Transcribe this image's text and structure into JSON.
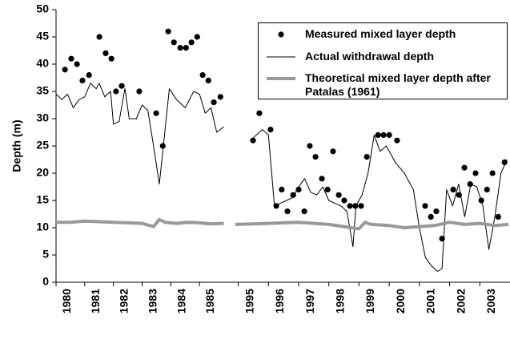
{
  "chart_data": {
    "type": "line",
    "ylabel": "Depth (m)",
    "ylim": [
      0,
      50
    ],
    "yticks": [
      0,
      5,
      10,
      15,
      20,
      25,
      30,
      35,
      40,
      45,
      50
    ],
    "xlim": [
      [
        1980,
        1986
      ],
      [
        1994.8,
        2004
      ]
    ],
    "xticks": [
      1980,
      1981,
      1982,
      1983,
      1984,
      1985,
      1995,
      1996,
      1997,
      1998,
      1999,
      2000,
      2001,
      2002,
      2003
    ],
    "legend": "upper right",
    "series": [
      {
        "name": "Measured mixed layer depth",
        "type": "scatter",
        "color": "#000000",
        "x": [
          1980.31,
          1980.53,
          1980.73,
          1980.92,
          1981.15,
          1981.51,
          1981.73,
          1981.93,
          1982.09,
          1982.29,
          1982.9,
          1983.49,
          1983.72,
          1983.91,
          1984.11,
          1984.33,
          1984.53,
          1984.72,
          1984.92,
          1985.11,
          1985.31,
          1985.5,
          1985.73,
          1995.49,
          1995.7,
          1996.07,
          1996.26,
          1996.44,
          1996.63,
          1996.82,
          1997.0,
          1997.19,
          1997.37,
          1997.56,
          1997.77,
          1997.96,
          1998.14,
          1998.33,
          1998.51,
          1998.7,
          1998.88,
          1999.07,
          1999.26,
          1999.63,
          1999.81,
          2000.0,
          2000.26,
          2001.19,
          2001.38,
          2001.56,
          2001.75,
          2002.12,
          2002.31,
          2002.49,
          2002.68,
          2002.86,
          2003.05,
          2003.24,
          2003.42,
          2003.61,
          2003.82
        ],
        "values": [
          39,
          41,
          40,
          37,
          38,
          45,
          42,
          41,
          35,
          36,
          35,
          31,
          25,
          46,
          44,
          43,
          43,
          44,
          45,
          38,
          37,
          33,
          34,
          26,
          31,
          28,
          14,
          17,
          13,
          16,
          17,
          13,
          25,
          23,
          19,
          17,
          24,
          16,
          15,
          14,
          14,
          14,
          23,
          27,
          27,
          27,
          26,
          14,
          12,
          13,
          8,
          17,
          16,
          21,
          18,
          20,
          15,
          17,
          20,
          12,
          22
        ]
      },
      {
        "name": "Actual withdrawal depth",
        "type": "line",
        "color": "#000000",
        "x": [
          1980.0,
          1980.2,
          1980.4,
          1980.6,
          1980.8,
          1981.0,
          1981.2,
          1981.4,
          1981.5,
          1981.7,
          1981.9,
          1982.0,
          1982.2,
          1982.4,
          1982.55,
          1982.8,
          1983.0,
          1983.2,
          1983.4,
          1983.6,
          1983.8,
          1983.95,
          1984.2,
          1984.5,
          1984.8,
          1985.0,
          1985.2,
          1985.4,
          1985.6,
          1985.85,
          null,
          1995.5,
          1995.8,
          1996.0,
          1996.2,
          1996.4,
          1996.6,
          1996.8,
          1997.0,
          1997.2,
          1997.4,
          1997.6,
          1997.8,
          1998.0,
          1998.2,
          1998.4,
          1998.6,
          1998.8,
          1998.9,
          1999.1,
          1999.3,
          1999.5,
          1999.7,
          1999.9,
          2000.2,
          2000.5,
          2000.8,
          2001.0,
          2001.2,
          2001.4,
          2001.6,
          2001.75,
          2001.9,
          2002.1,
          2002.3,
          2002.5,
          2002.7,
          2002.9,
          2003.1,
          2003.3,
          2003.5,
          2003.7,
          2003.9
        ],
        "values": [
          34.5,
          33.5,
          34.5,
          32,
          33.5,
          34,
          36.5,
          35.5,
          36.5,
          34,
          35,
          29,
          29.5,
          35.5,
          30,
          30,
          32.5,
          31.5,
          25,
          18,
          28,
          35.5,
          33.5,
          32,
          35,
          34.5,
          31,
          32,
          27.5,
          28.5,
          null,
          26.5,
          28,
          27,
          14,
          14.5,
          15,
          15.5,
          17.5,
          19,
          16.5,
          16,
          17.5,
          15,
          14.5,
          14,
          13,
          6.5,
          14,
          16,
          20,
          27,
          24,
          25,
          22,
          20,
          17,
          10,
          4.5,
          3,
          2,
          2.5,
          17,
          14,
          18,
          12,
          18,
          17.5,
          14,
          6,
          12,
          20,
          22.5
        ]
      },
      {
        "name": "Theoretical mixed layer depth after Patalas (1961)",
        "type": "line",
        "color": "#999999",
        "width": 4,
        "x": [
          1980.0,
          1980.5,
          1981.0,
          1981.5,
          1982.0,
          1982.5,
          1983.0,
          1983.4,
          1983.6,
          1983.8,
          1984.2,
          1984.6,
          1985.0,
          1985.4,
          1985.85,
          null,
          1994.9,
          1995.5,
          1996.0,
          1996.5,
          1997.0,
          1997.5,
          1998.0,
          1998.5,
          1999.0,
          1999.2,
          1999.4,
          2000.0,
          2000.5,
          2001.0,
          2001.5,
          2002.0,
          2002.5,
          2003.0,
          2003.5,
          2003.95
        ],
        "values": [
          11,
          11,
          11.2,
          11.1,
          11,
          10.9,
          10.8,
          10.2,
          11.5,
          11,
          10.8,
          11,
          10.9,
          10.7,
          10.8,
          null,
          10.6,
          10.7,
          10.8,
          10.9,
          11,
          10.8,
          10.6,
          10.2,
          9.8,
          11,
          10.6,
          10.4,
          10,
          10.2,
          10.4,
          11,
          10.6,
          10.8,
          10.4,
          10.6
        ]
      }
    ]
  }
}
